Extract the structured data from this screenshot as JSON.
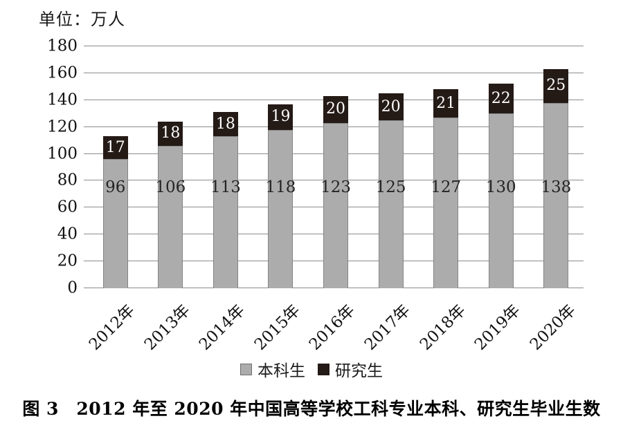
{
  "chart_data": {
    "type": "bar",
    "stacked": true,
    "unit_label": "单位：万人",
    "categories": [
      "2012年",
      "2013年",
      "2014年",
      "2015年",
      "2016年",
      "2017年",
      "2018年",
      "2019年",
      "2020年"
    ],
    "series": [
      {
        "name": "本科生",
        "color": "#acacac",
        "values": [
          96,
          106,
          113,
          118,
          123,
          125,
          127,
          130,
          138
        ]
      },
      {
        "name": "研究生",
        "color": "#241a16",
        "values": [
          17,
          18,
          18,
          19,
          20,
          20,
          21,
          22,
          25
        ]
      }
    ],
    "ylim": [
      0,
      180
    ],
    "yticks": [
      0,
      20,
      40,
      60,
      80,
      100,
      120,
      140,
      160,
      180
    ],
    "grid": true,
    "legend_position": "bottom",
    "xlabel": "",
    "ylabel": "万人"
  },
  "caption": "图 3　2012 年至 2020 年中国高等学校工科专业本科、研究生毕业生数",
  "colors": {
    "undergrad_bar": "#acacac",
    "grad_bar": "#241a16",
    "gridline": "#8c8c8c",
    "bar_value_light": "#ffffff",
    "bar_value_dark": "#242424"
  }
}
